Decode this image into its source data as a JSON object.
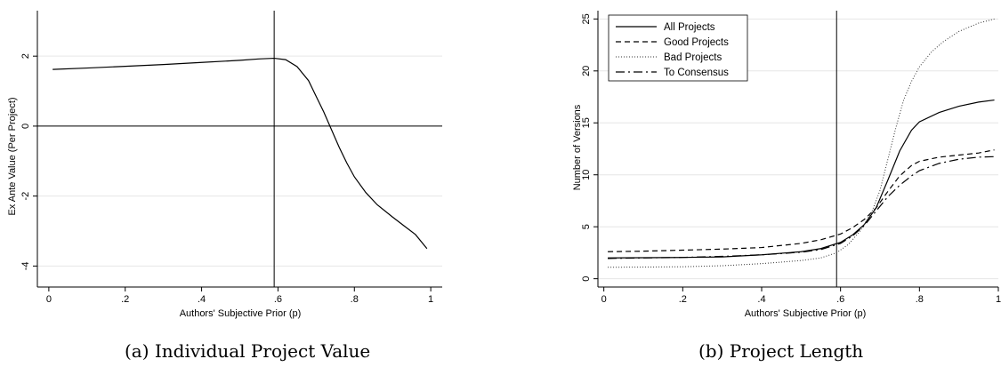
{
  "chart_data": [
    {
      "type": "line",
      "caption": "(a) Individual Project Value",
      "xlabel": "Authors' Subjective Prior (p)",
      "ylabel": "Ex Ante Value (Per Project)",
      "xlim": [
        -0.03,
        1.03
      ],
      "ylim": [
        -4.6,
        3.3
      ],
      "xticks": [
        0,
        0.2,
        0.4,
        0.6,
        0.8,
        1
      ],
      "xtick_labels": [
        "0",
        ".2",
        ".4",
        ".6",
        ".8",
        "1"
      ],
      "yticks": [
        -4,
        -2,
        0,
        2
      ],
      "ytick_labels": [
        "-4",
        "-2",
        "0",
        "2"
      ],
      "vline": 0.59,
      "hline": 0,
      "grid": "horizontal",
      "series": [
        {
          "style": "solid",
          "x": [
            0.01,
            0.1,
            0.2,
            0.3,
            0.4,
            0.5,
            0.55,
            0.59,
            0.62,
            0.65,
            0.68,
            0.7,
            0.72,
            0.74,
            0.76,
            0.78,
            0.8,
            0.83,
            0.86,
            0.9,
            0.93,
            0.96,
            0.99
          ],
          "y": [
            1.62,
            1.66,
            1.71,
            1.76,
            1.82,
            1.88,
            1.92,
            1.94,
            1.9,
            1.7,
            1.3,
            0.85,
            0.4,
            -0.1,
            -0.6,
            -1.05,
            -1.45,
            -1.9,
            -2.25,
            -2.6,
            -2.85,
            -3.1,
            -3.5
          ]
        }
      ]
    },
    {
      "type": "line",
      "caption": "(b) Project Length",
      "xlabel": "Authors' Subjective Prior (p)",
      "ylabel": "Number of Versions",
      "xlim": [
        -0.015,
        1.0
      ],
      "ylim": [
        -0.8,
        25.8
      ],
      "xticks": [
        0,
        0.2,
        0.4,
        0.6,
        0.8,
        1
      ],
      "xtick_labels": [
        "0",
        ".2",
        ".4",
        ".6",
        ".8",
        "1"
      ],
      "yticks": [
        0,
        5,
        10,
        15,
        20,
        25
      ],
      "ytick_labels": [
        "0",
        "5",
        "10",
        "15",
        "20",
        "25"
      ],
      "vline": 0.59,
      "grid": "horizontal",
      "legend": "top-left",
      "series": [
        {
          "name": "All Projects",
          "style": "solid",
          "x": [
            0.01,
            0.1,
            0.2,
            0.3,
            0.4,
            0.5,
            0.55,
            0.6,
            0.63,
            0.66,
            0.69,
            0.72,
            0.75,
            0.78,
            0.8,
            0.85,
            0.9,
            0.95,
            0.99
          ],
          "y": [
            2.0,
            2.02,
            2.05,
            2.1,
            2.3,
            2.6,
            2.9,
            3.5,
            4.2,
            5.2,
            6.8,
            9.5,
            12.3,
            14.3,
            15.1,
            16.0,
            16.6,
            17.0,
            17.2
          ]
        },
        {
          "name": "Good Projects",
          "style": "dashed",
          "x": [
            0.01,
            0.1,
            0.2,
            0.3,
            0.4,
            0.5,
            0.55,
            0.6,
            0.63,
            0.66,
            0.69,
            0.72,
            0.75,
            0.78,
            0.8,
            0.85,
            0.9,
            0.95,
            0.99
          ],
          "y": [
            2.6,
            2.65,
            2.75,
            2.85,
            3.0,
            3.4,
            3.75,
            4.3,
            4.9,
            5.7,
            6.8,
            8.4,
            9.9,
            10.9,
            11.3,
            11.7,
            11.9,
            12.1,
            12.4
          ]
        },
        {
          "name": "Bad Projects",
          "style": "dotted",
          "x": [
            0.01,
            0.1,
            0.2,
            0.3,
            0.4,
            0.5,
            0.55,
            0.59,
            0.62,
            0.65,
            0.68,
            0.7,
            0.72,
            0.74,
            0.76,
            0.78,
            0.8,
            0.83,
            0.86,
            0.9,
            0.95,
            0.99
          ],
          "y": [
            1.1,
            1.12,
            1.15,
            1.25,
            1.45,
            1.75,
            2.0,
            2.5,
            3.3,
            4.6,
            6.5,
            8.5,
            11.5,
            14.5,
            17.2,
            19.0,
            20.4,
            21.8,
            22.8,
            23.8,
            24.6,
            25.0
          ]
        },
        {
          "name": "To Consensus",
          "style": "dashdot",
          "x": [
            0.01,
            0.1,
            0.2,
            0.3,
            0.4,
            0.5,
            0.55,
            0.6,
            0.63,
            0.66,
            0.69,
            0.72,
            0.75,
            0.78,
            0.8,
            0.85,
            0.9,
            0.95,
            0.99
          ],
          "y": [
            1.95,
            2.0,
            2.05,
            2.15,
            2.3,
            2.55,
            2.8,
            3.4,
            4.1,
            5.1,
            6.5,
            7.9,
            9.0,
            9.9,
            10.4,
            11.1,
            11.5,
            11.7,
            11.75
          ]
        }
      ]
    }
  ]
}
